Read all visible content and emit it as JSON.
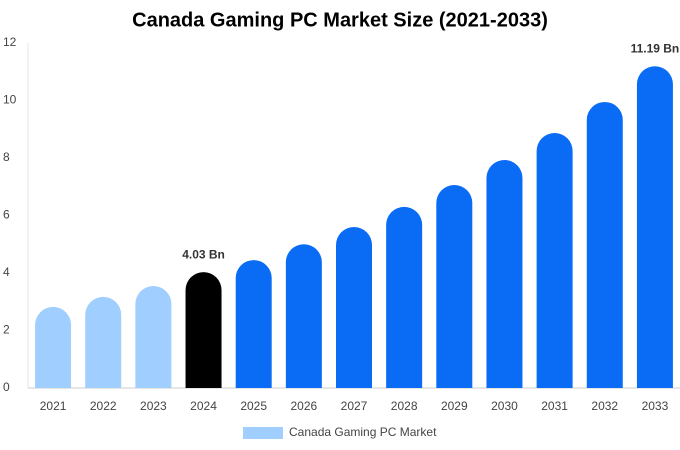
{
  "chart_data": {
    "type": "bar",
    "title": "Canada Gaming PC Market Size (2021-2033)",
    "categories": [
      "2021",
      "2022",
      "2023",
      "2024",
      "2025",
      "2026",
      "2027",
      "2028",
      "2029",
      "2030",
      "2031",
      "2032",
      "2033"
    ],
    "series": [
      {
        "name": "Canada Gaming PC Market",
        "color": "#a0cfff",
        "colors": [
          "#a0cfff",
          "#a0cfff",
          "#a0cfff",
          "#000000",
          "#0a6cf5",
          "#0a6cf5",
          "#0a6cf5",
          "#0a6cf5",
          "#0a6cf5",
          "#0a6cf5",
          "#0a6cf5",
          "#0a6cf5",
          "#0a6cf5"
        ],
        "values": [
          2.82,
          3.17,
          3.55,
          4.03,
          4.45,
          5.0,
          5.6,
          6.3,
          7.06,
          7.93,
          8.87,
          9.95,
          11.19
        ],
        "value_labels": [
          null,
          null,
          null,
          "4.03 Bn",
          null,
          null,
          null,
          null,
          null,
          null,
          null,
          null,
          "11.19 Bn"
        ]
      }
    ],
    "ylim": [
      0,
      12
    ],
    "yticks": [
      0,
      2,
      4,
      6,
      8,
      10,
      12
    ],
    "grid": false,
    "legend": "bottom"
  }
}
